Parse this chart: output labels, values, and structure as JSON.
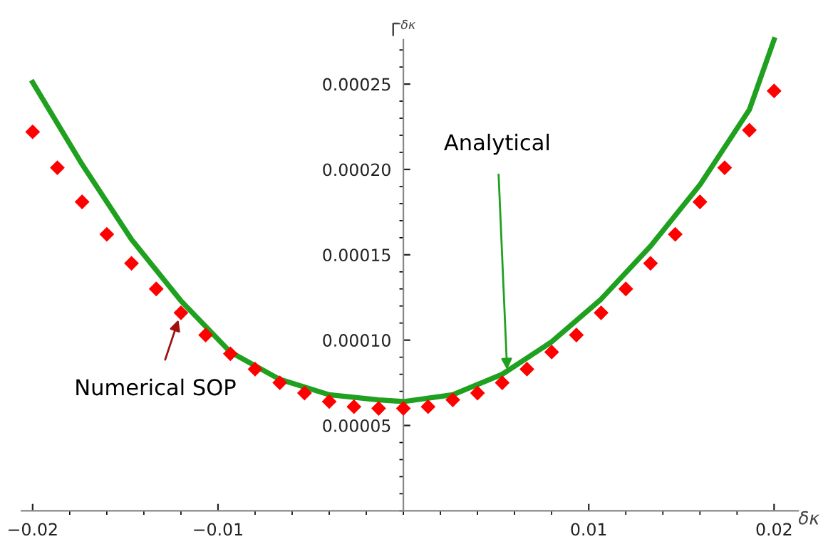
{
  "chart_data": {
    "type": "line",
    "xlabel": "δκ",
    "ylabel": "Γ̄$^{δκ}$",
    "xlim": [
      -0.0206,
      0.0213
    ],
    "ylim": [
      0,
      0.000276
    ],
    "xticks": [
      {
        "value": -0.02,
        "label": "−0.02"
      },
      {
        "value": -0.01,
        "label": "−0.01"
      },
      0.01,
      0.02
    ],
    "yticks": [
      {
        "value": 5e-05,
        "label": "0.00005"
      },
      {
        "value": 0.0001,
        "label": "0.00010"
      },
      {
        "value": 0.00015,
        "label": "0.00015"
      },
      {
        "value": 0.0002,
        "label": "0.00020"
      },
      {
        "value": 0.00025,
        "label": "0.00025"
      }
    ],
    "grid": false,
    "legend": false,
    "series": [
      {
        "color": "#1fa01f",
        "marker": "none",
        "line_style": "solid",
        "x": [
          -0.02,
          -0.017333,
          -0.014667,
          -0.012,
          -0.009333,
          -0.006667,
          -0.004,
          -0.001333,
          0,
          0.002667,
          0.005333,
          0.008,
          0.010667,
          0.013333,
          0.016,
          0.018667,
          0.02
        ],
        "values": [
          0.000251,
          0.000203,
          0.000159,
          0.000123,
          9.3e-05,
          7.7e-05,
          6.8e-05,
          6.5e-05,
          6.4e-05,
          6.8e-05,
          8e-05,
          9.9e-05,
          0.000124,
          0.000155,
          0.000191,
          0.000235,
          0.000276
        ]
      },
      {
        "type": "scatter",
        "color": "#ff0000",
        "marker": "diamond",
        "x": [
          -0.02,
          -0.018667,
          -0.017333,
          -0.016,
          -0.014667,
          -0.013333,
          -0.012,
          -0.010667,
          -0.009333,
          -0.008,
          -0.006667,
          -0.005333,
          -0.004,
          -0.002667,
          -0.001333,
          0,
          0.001333,
          0.002667,
          0.004,
          0.005333,
          0.006667,
          0.008,
          0.009333,
          0.010667,
          0.012,
          0.013333,
          0.014667,
          0.016,
          0.017333,
          0.018667,
          0.02
        ],
        "values": [
          0.000222,
          0.000201,
          0.000181,
          0.000162,
          0.000145,
          0.00013,
          0.000116,
          0.000103,
          9.2e-05,
          8.3e-05,
          7.5e-05,
          6.9e-05,
          6.4e-05,
          6.1e-05,
          6e-05,
          6e-05,
          6.1e-05,
          6.5e-05,
          6.9e-05,
          7.5e-05,
          8.3e-05,
          9.3e-05,
          0.000103,
          0.000116,
          0.00013,
          0.000145,
          0.000162,
          0.000181,
          0.000201,
          0.000223,
          0.000246
        ]
      }
    ],
    "annotations": [
      {
        "text": "Analytical",
        "x": 0.0056,
        "y": 8.15e-05
      },
      {
        "text": "Numerical SOP",
        "x": -0.0121,
        "y": 0.000113
      }
    ]
  }
}
